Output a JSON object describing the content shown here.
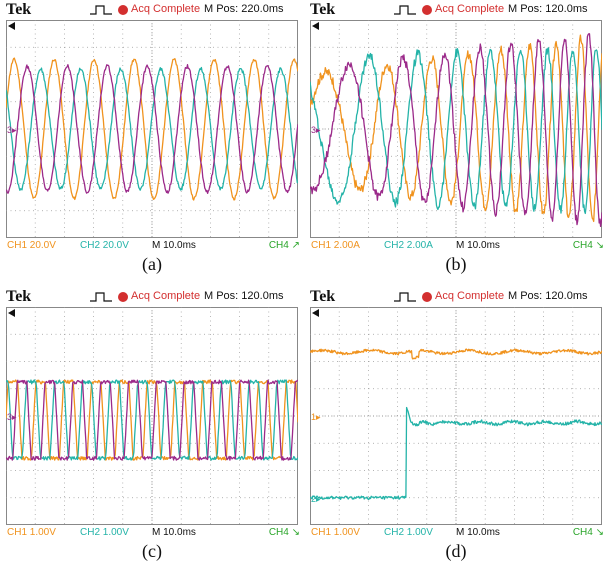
{
  "chart_data": [
    {
      "type": "line",
      "caption": "(a)",
      "header": {
        "brand": "Tek",
        "status": "Acq Complete",
        "mpos": "M Pos: 220.0ms"
      },
      "footer": {
        "ch1": "CH1  20.0V",
        "ch2": "CH2  20.0V",
        "time": "M 10.0ms",
        "ch4": "CH4 ↗"
      },
      "markers": [
        {
          "label": "3▸",
          "level": 0.0
        }
      ],
      "x": {
        "unit": "ms",
        "range": [
          0,
          100
        ]
      },
      "y": {
        "unit": "div",
        "range": [
          -4,
          4
        ]
      },
      "series": [
        {
          "color": "#f0931e",
          "kind": "sine",
          "amp": 2.55,
          "offset": 0.0,
          "cycles": 7.3,
          "phase": 0.3,
          "noise": 0.06
        },
        {
          "color": "#24b3a8",
          "kind": "sine",
          "amp": 2.2,
          "offset": 0.0,
          "cycles": 7.3,
          "phase": 2.4,
          "noise": 0.08
        },
        {
          "color": "#9b2a8a",
          "kind": "sine",
          "amp": 2.3,
          "offset": 0.0,
          "cycles": 7.3,
          "phase": 4.5,
          "noise": 0.07
        }
      ]
    },
    {
      "type": "line",
      "caption": "(b)",
      "header": {
        "brand": "Tek",
        "status": "Acq Complete",
        "mpos": "M Pos: 120.0ms"
      },
      "footer": {
        "ch1": "CH1  2.00A",
        "ch2": "CH2  2.00A",
        "time": "M 10.0ms",
        "ch4": "CH4 ↘"
      },
      "markers": [
        {
          "label": "3▸",
          "level": 0.0
        }
      ],
      "x": {
        "unit": "ms",
        "range": [
          0,
          100
        ]
      },
      "y": {
        "unit": "div",
        "range": [
          -4,
          4
        ]
      },
      "series": [
        {
          "color": "#f0931e",
          "kind": "chirp",
          "amp": 2.0,
          "ampEnd": 3.4,
          "offset": 0.0,
          "f0": 3.2,
          "f1": 13.0,
          "phase": 0.4,
          "noise": 0.18
        },
        {
          "color": "#24b3a8",
          "kind": "chirp",
          "amp": 2.6,
          "ampEnd": 3.0,
          "offset": 0.0,
          "f0": 3.2,
          "f1": 13.0,
          "phase": 2.5,
          "noise": 0.18
        },
        {
          "color": "#9b2a8a",
          "kind": "chirp",
          "amp": 2.2,
          "ampEnd": 3.5,
          "offset": 0.0,
          "f0": 3.2,
          "f1": 13.0,
          "phase": 4.6,
          "noise": 0.18
        }
      ]
    },
    {
      "type": "line",
      "caption": "(c)",
      "header": {
        "brand": "Tek",
        "status": "Acq Complete",
        "mpos": "M Pos: 120.0ms"
      },
      "footer": {
        "ch1": "CH1  1.00V",
        "ch2": "CH2  1.00V",
        "time": "M 10.0ms",
        "ch4": "CH4 ↘"
      },
      "markers": [
        {
          "label": "3▸",
          "level": 0.0
        }
      ],
      "x": {
        "unit": "ms",
        "range": [
          0,
          100
        ]
      },
      "y": {
        "unit": "div",
        "range": [
          -4,
          4
        ]
      },
      "series": [
        {
          "color": "#f0931e",
          "kind": "trap",
          "amp": 1.4,
          "offset": -0.15,
          "cycles": 10.5,
          "phase": 0.5,
          "noise": 0.07
        },
        {
          "color": "#24b3a8",
          "kind": "trap",
          "amp": 1.4,
          "offset": -0.15,
          "cycles": 10.5,
          "phase": 2.6,
          "noise": 0.07
        },
        {
          "color": "#9b2a8a",
          "kind": "trap",
          "amp": 1.4,
          "offset": -0.15,
          "cycles": 10.5,
          "phase": 4.7,
          "noise": 0.07
        }
      ]
    },
    {
      "type": "line",
      "caption": "(d)",
      "header": {
        "brand": "Tek",
        "status": "Acq Complete",
        "mpos": "M Pos: 120.0ms"
      },
      "footer": {
        "ch1": "CH1  1.00V",
        "ch2": "CH2  1.00V",
        "time": "M 10.0ms",
        "ch4": "CH4 ↘"
      },
      "markers": [
        {
          "label": "1▸",
          "level": 0.0
        },
        {
          "label": "2▸",
          "level": -3.0
        }
      ],
      "x": {
        "unit": "ms",
        "range": [
          0,
          100
        ]
      },
      "y": {
        "unit": "div",
        "range": [
          -4,
          4
        ]
      },
      "series": [
        {
          "color": "#f0931e",
          "kind": "flat",
          "level": 2.35,
          "noise": 0.05,
          "dipAt": 36,
          "dipDepth": 0.25
        },
        {
          "color": "#24b3a8",
          "kind": "step",
          "low": -3.0,
          "high": -0.25,
          "stepAt": 33,
          "overshoot": 0.6,
          "noise": 0.06
        }
      ]
    }
  ]
}
